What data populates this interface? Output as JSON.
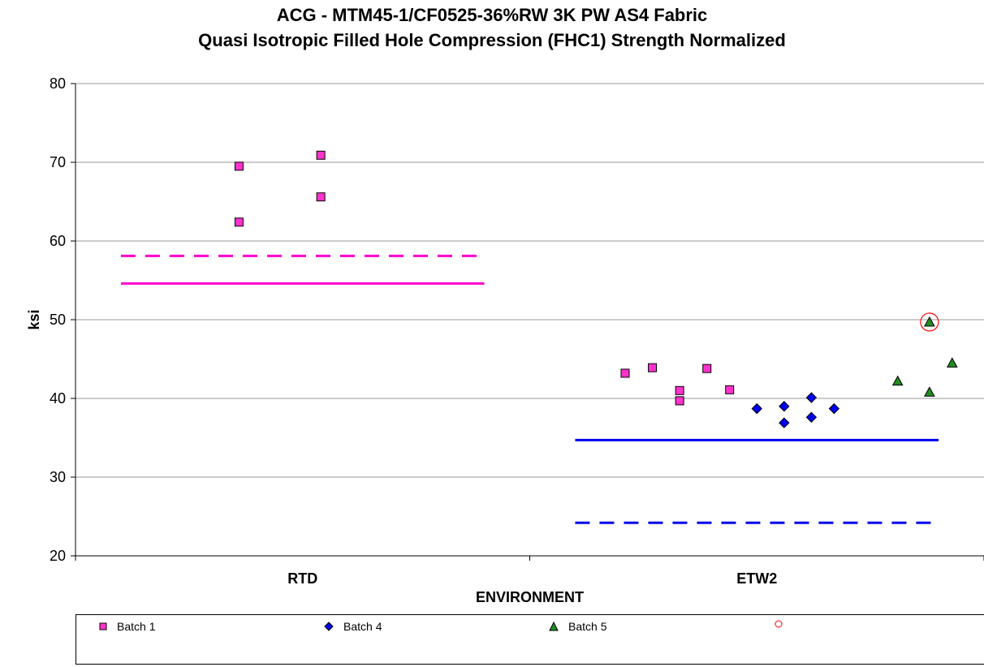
{
  "chart_data": {
    "type": "scatter",
    "title": "ACG - MTM45-1/CF0525-36%RW 3K PW AS4 Fabric",
    "subtitle": "Quasi Isotropic Filled Hole Compression (FHC1) Strength Normalized",
    "xlabel": "ENVIRONMENT",
    "ylabel": "ksi",
    "ylim": [
      20,
      80
    ],
    "yticks": [
      20,
      30,
      40,
      50,
      60,
      70,
      80
    ],
    "categories": [
      "RTD",
      "ETW2"
    ],
    "grid": true,
    "legend_position": "bottom",
    "series": [
      {
        "name": "Batch 1",
        "marker": "square",
        "color": "#ff33cc",
        "points": [
          {
            "category": "RTD",
            "offset": -0.14,
            "y": 69.5
          },
          {
            "category": "RTD",
            "offset": 0.04,
            "y": 70.9
          },
          {
            "category": "RTD",
            "offset": -0.14,
            "y": 62.4
          },
          {
            "category": "RTD",
            "offset": 0.04,
            "y": 65.6
          },
          {
            "category": "ETW2",
            "offset": -0.29,
            "y": 43.2
          },
          {
            "category": "ETW2",
            "offset": -0.23,
            "y": 43.9
          },
          {
            "category": "ETW2",
            "offset": -0.17,
            "y": 41.0
          },
          {
            "category": "ETW2",
            "offset": -0.17,
            "y": 39.7
          },
          {
            "category": "ETW2",
            "offset": -0.11,
            "y": 43.8
          },
          {
            "category": "ETW2",
            "offset": -0.06,
            "y": 41.1
          }
        ]
      },
      {
        "name": "Batch 4",
        "marker": "diamond",
        "color": "#0000ee",
        "points": [
          {
            "category": "ETW2",
            "offset": 0.0,
            "y": 38.7
          },
          {
            "category": "ETW2",
            "offset": 0.06,
            "y": 39.0
          },
          {
            "category": "ETW2",
            "offset": 0.06,
            "y": 36.9
          },
          {
            "category": "ETW2",
            "offset": 0.12,
            "y": 40.1
          },
          {
            "category": "ETW2",
            "offset": 0.12,
            "y": 37.6
          },
          {
            "category": "ETW2",
            "offset": 0.17,
            "y": 38.7
          }
        ]
      },
      {
        "name": "Batch 5",
        "marker": "triangle",
        "color": "#228b22",
        "points": [
          {
            "category": "ETW2",
            "offset": 0.31,
            "y": 42.2
          },
          {
            "category": "ETW2",
            "offset": 0.38,
            "y": 40.8
          },
          {
            "category": "ETW2",
            "offset": 0.38,
            "y": 49.7
          },
          {
            "category": "ETW2",
            "offset": 0.43,
            "y": 44.5
          }
        ]
      },
      {
        "name": "",
        "marker": "circle-open",
        "color": "#ff0000",
        "points": [
          {
            "category": "ETW2",
            "offset": 0.38,
            "y": 49.7
          }
        ]
      }
    ],
    "reference_lines": [
      {
        "category": "RTD",
        "y": 58.1,
        "style": "dashed",
        "color": "#ff00cc"
      },
      {
        "category": "RTD",
        "y": 54.6,
        "style": "solid",
        "color": "#ff00cc"
      },
      {
        "category": "ETW2",
        "y": 34.7,
        "style": "solid",
        "color": "#0000ee"
      },
      {
        "category": "ETW2",
        "y": 24.2,
        "style": "dashed",
        "color": "#0000ee"
      }
    ]
  }
}
